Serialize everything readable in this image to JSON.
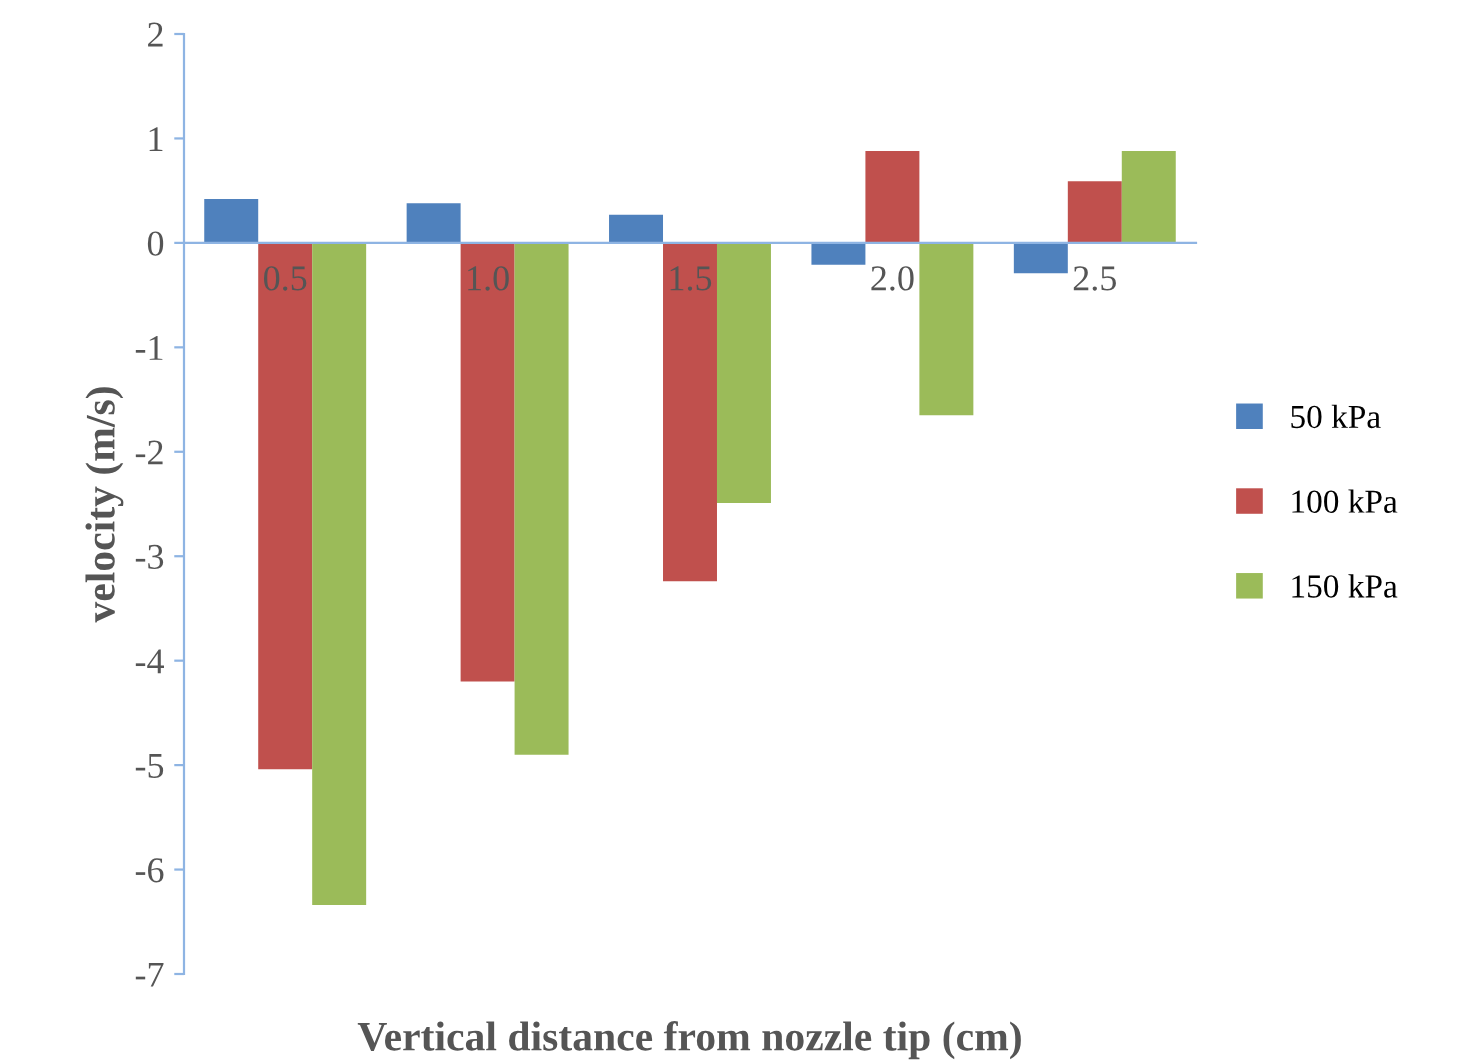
{
  "chart_data": {
    "type": "bar",
    "xlabel": "Vertical distance from nozzle tip (cm)",
    "ylabel": "velocity (m/s)",
    "categories": [
      "0.5",
      "1.0",
      "1.5",
      "2.0",
      "2.5"
    ],
    "series": [
      {
        "name": "50 kPa",
        "color": "#4f81bd",
        "values": [
          0.42,
          0.38,
          0.27,
          -0.21,
          -0.29
        ]
      },
      {
        "name": "100 kPa",
        "color": "#c0504d",
        "values": [
          -5.04,
          -4.2,
          -3.24,
          0.88,
          0.59
        ]
      },
      {
        "name": "150 kPa",
        "color": "#9bbb59",
        "values": [
          -6.34,
          -4.9,
          -2.49,
          -1.65,
          0.88
        ]
      }
    ],
    "ylim": [
      -7,
      2
    ],
    "yticks": [
      -7,
      -6,
      -5,
      -4,
      -3,
      -2,
      -1,
      0,
      1,
      2
    ],
    "grid": false,
    "legend": "right"
  }
}
